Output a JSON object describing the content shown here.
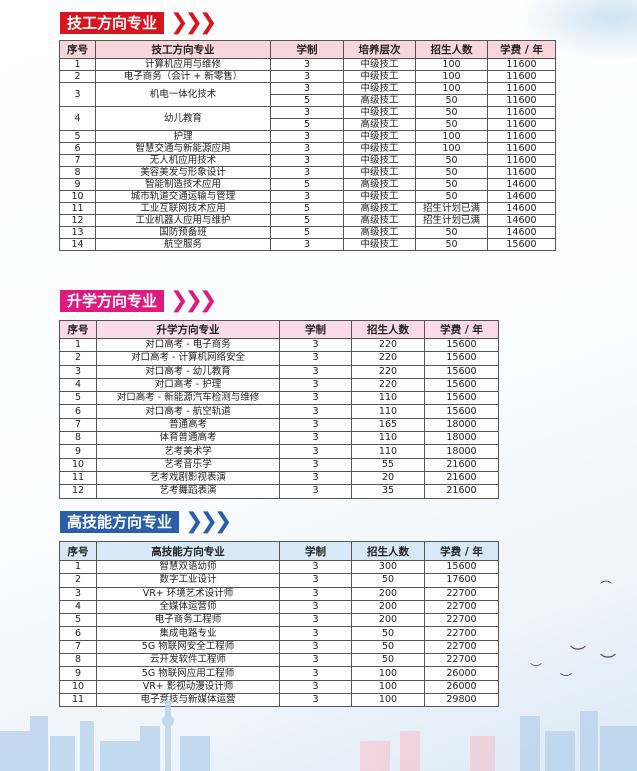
{
  "colors": {
    "technical": "#d7141f",
    "academic": "#e0197e",
    "high_skill": "#2a5ea8"
  },
  "technical": {
    "title": "技工方向专业",
    "chevrons": "❯❯❯",
    "headers": [
      "序号",
      "技工方向专业",
      "学制",
      "培养层次",
      "招生人数",
      "学费 / 年"
    ],
    "rows": [
      {
        "no": "1",
        "name": "计算机应用与维修",
        "levels": [
          [
            "3",
            "中级技工",
            "100",
            "11600"
          ]
        ]
      },
      {
        "no": "2",
        "name": "电子商务（会计 + 新零售）",
        "levels": [
          [
            "3",
            "中级技工",
            "100",
            "11600"
          ]
        ]
      },
      {
        "no": "3",
        "name": "机电一体化技术",
        "levels": [
          [
            "3",
            "中级技工",
            "100",
            "11600"
          ],
          [
            "5",
            "高级技工",
            "50",
            "11600"
          ]
        ]
      },
      {
        "no": "4",
        "name": "幼儿教育",
        "levels": [
          [
            "3",
            "中级技工",
            "50",
            "11600"
          ],
          [
            "5",
            "高级技工",
            "50",
            "11600"
          ]
        ]
      },
      {
        "no": "5",
        "name": "护理",
        "levels": [
          [
            "3",
            "中级技工",
            "100",
            "11600"
          ]
        ]
      },
      {
        "no": "6",
        "name": "智慧交通与新能源应用",
        "levels": [
          [
            "3",
            "中级技工",
            "100",
            "11600"
          ]
        ]
      },
      {
        "no": "7",
        "name": "无人机应用技术",
        "levels": [
          [
            "3",
            "中级技工",
            "50",
            "11600"
          ]
        ]
      },
      {
        "no": "8",
        "name": "美容美发与形象设计",
        "levels": [
          [
            "3",
            "中级技工",
            "50",
            "11600"
          ]
        ]
      },
      {
        "no": "9",
        "name": "智能制造技术应用",
        "levels": [
          [
            "5",
            "高级技工",
            "50",
            "14600"
          ]
        ]
      },
      {
        "no": "10",
        "name": "城市轨道交通运输与管理",
        "levels": [
          [
            "3",
            "中级技工",
            "50",
            "14600"
          ]
        ]
      },
      {
        "no": "11",
        "name": "工业互联网技术应用",
        "levels": [
          [
            "5",
            "高级技工",
            "招生计划已满",
            "14600"
          ]
        ]
      },
      {
        "no": "12",
        "name": "工业机器人应用与维护",
        "levels": [
          [
            "5",
            "高级技工",
            "招生计划已满",
            "14600"
          ]
        ]
      },
      {
        "no": "13",
        "name": "国防预备班",
        "levels": [
          [
            "5",
            "高级技工",
            "50",
            "14600"
          ]
        ]
      },
      {
        "no": "14",
        "name": "航空服务",
        "levels": [
          [
            "3",
            "中级技工",
            "50",
            "15600"
          ]
        ]
      }
    ]
  },
  "academic": {
    "title": "升学方向专业",
    "chevrons": "❯❯❯",
    "headers": [
      "序号",
      "升学方向专业",
      "学制",
      "招生人数",
      "学费 / 年"
    ],
    "rows": [
      [
        "1",
        "对口高考 - 电子商务",
        "3",
        "220",
        "15600"
      ],
      [
        "2",
        "对口高考 - 计算机网络安全",
        "3",
        "220",
        "15600"
      ],
      [
        "3",
        "对口高考 - 幼儿教育",
        "3",
        "220",
        "15600"
      ],
      [
        "4",
        "对口高考 - 护理",
        "3",
        "220",
        "15600"
      ],
      [
        "5",
        "对口高考 - 新能源汽车检测与维修",
        "3",
        "110",
        "15600"
      ],
      [
        "6",
        "对口高考 - 航空轨道",
        "3",
        "110",
        "15600"
      ],
      [
        "7",
        "普通高考",
        "3",
        "165",
        "18000"
      ],
      [
        "8",
        "体育普通高考",
        "3",
        "110",
        "18000"
      ],
      [
        "9",
        "艺考美术学",
        "3",
        "110",
        "18000"
      ],
      [
        "10",
        "艺考音乐学",
        "3",
        "55",
        "21600"
      ],
      [
        "11",
        "艺考戏剧影视表演",
        "3",
        "20",
        "21600"
      ],
      [
        "12",
        "艺考舞蹈表演",
        "3",
        "35",
        "21600"
      ]
    ]
  },
  "high_skill": {
    "title": "高技能方向专业",
    "chevrons": "❯❯❯",
    "headers": [
      "序号",
      "高技能方向专业",
      "学制",
      "招生人数",
      "学费 / 年"
    ],
    "rows": [
      [
        "1",
        "智慧双语幼师",
        "3",
        "300",
        "15600"
      ],
      [
        "2",
        "数字工业设计",
        "3",
        "50",
        "17600"
      ],
      [
        "3",
        "VR+ 环境艺术设计师",
        "3",
        "200",
        "22700"
      ],
      [
        "4",
        "全媒体运营师",
        "3",
        "200",
        "22700"
      ],
      [
        "5",
        "电子商务工程师",
        "3",
        "200",
        "22700"
      ],
      [
        "6",
        "集成电路专业",
        "3",
        "50",
        "22700"
      ],
      [
        "7",
        "5G 物联网安全工程师",
        "3",
        "50",
        "22700"
      ],
      [
        "8",
        "云开发软件工程师",
        "3",
        "50",
        "22700"
      ],
      [
        "9",
        "5G 物联网应用工程师",
        "3",
        "100",
        "26000"
      ],
      [
        "10",
        "VR+ 影视动漫设计师",
        "3",
        "100",
        "26000"
      ],
      [
        "11",
        "电子竞技与新媒体运营",
        "3",
        "100",
        "29800"
      ]
    ]
  }
}
